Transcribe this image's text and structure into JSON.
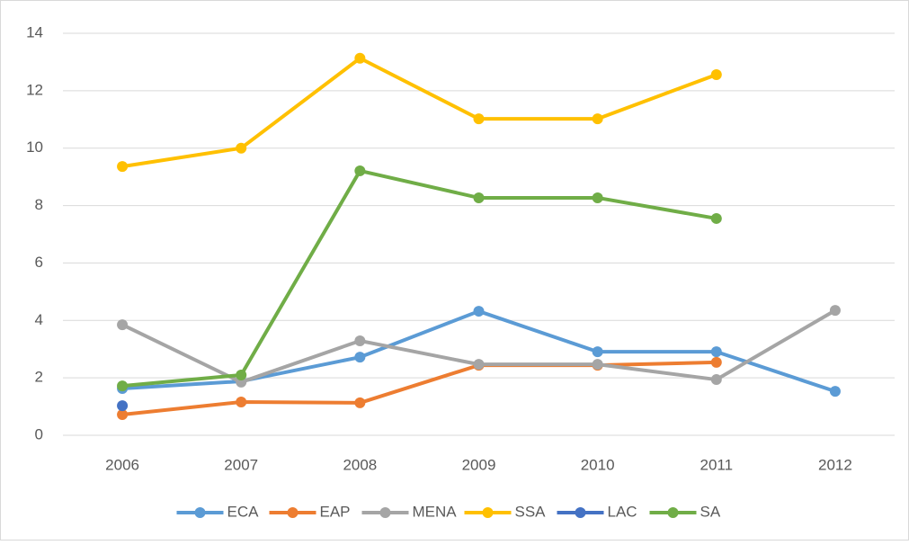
{
  "chart_data": {
    "type": "line",
    "categories": [
      "2006",
      "2007",
      "2008",
      "2009",
      "2010",
      "2011",
      "2012"
    ],
    "series": [
      {
        "name": "ECA",
        "color": "#5b9bd5",
        "values": [
          1.63,
          1.88,
          2.72,
          4.32,
          2.91,
          2.91,
          1.53
        ]
      },
      {
        "name": "EAP",
        "color": "#ed7d31",
        "values": [
          0.72,
          1.16,
          1.13,
          2.44,
          2.44,
          2.54,
          null
        ]
      },
      {
        "name": "MENA",
        "color": "#a5a5a5",
        "values": [
          3.85,
          1.85,
          3.29,
          2.47,
          2.47,
          1.94,
          4.35
        ]
      },
      {
        "name": "SSA",
        "color": "#ffc000",
        "values": [
          9.36,
          10.0,
          13.13,
          11.02,
          11.02,
          12.56,
          null
        ]
      },
      {
        "name": "LAC",
        "color": "#4472c4",
        "values": [
          1.03,
          null,
          null,
          null,
          null,
          null,
          null
        ]
      },
      {
        "name": "SA",
        "color": "#70ad47",
        "values": [
          1.72,
          2.1,
          9.21,
          8.27,
          8.27,
          7.55,
          null
        ]
      }
    ],
    "ylim": [
      0,
      14
    ],
    "yticks": [
      0,
      2,
      4,
      6,
      8,
      10,
      12,
      14
    ],
    "grid": true,
    "legend": "bottom"
  }
}
